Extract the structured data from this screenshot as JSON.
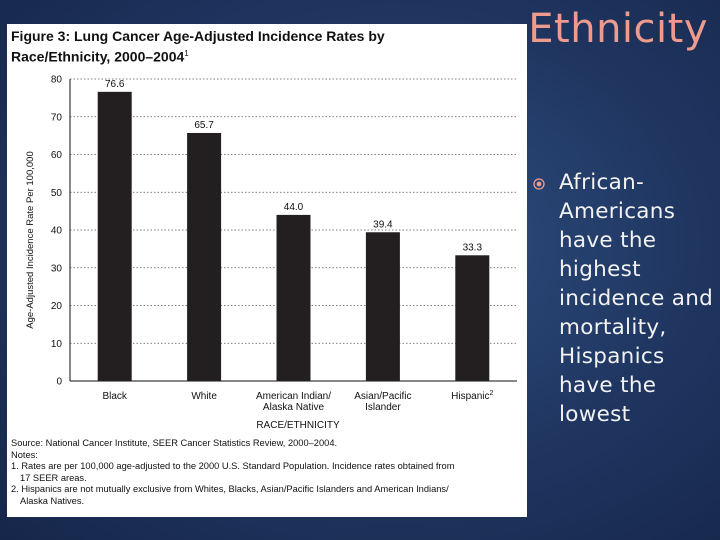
{
  "slide": {
    "title": "Ethnicity",
    "bullet": "African-Americans have the highest incidence and mortality, Hispanics have the lowest"
  },
  "figure": {
    "title_line1": "Figure 3: Lung Cancer Age-Adjusted Incidence Rates by",
    "title_line2": "Race/Ethnicity, 2000–2004",
    "title_superscript": "1",
    "source": "Source: National Cancer Institute, SEER Cancer Statistics Review, 2000–2004.",
    "notes_heading": "Notes:",
    "note1_line1": "1. Rates are per 100,000 age-adjusted to the 2000 U.S. Standard Population. Incidence rates obtained from",
    "note1_line2": "17 SEER areas.",
    "note2_line1": "2. Hispanics are not mutually exclusive from Whites, Blacks, Asian/Pacific Islanders and American Indians/",
    "note2_line2": "Alaska Natives."
  },
  "chart_data": {
    "type": "bar",
    "categories": [
      [
        "Black"
      ],
      [
        "White"
      ],
      [
        "American Indian/",
        "Alaska Native"
      ],
      [
        "Asian/Pacific",
        "Islander"
      ],
      [
        "Hispanic"
      ]
    ],
    "category_superscripts": [
      "",
      "",
      "",
      "",
      "2"
    ],
    "values": [
      76.6,
      65.7,
      44.0,
      39.4,
      33.3
    ],
    "value_labels": [
      "76.6",
      "65.7",
      "44.0",
      "39.4",
      "33.3"
    ],
    "xlabel": "RACE/ETHNICITY",
    "ylabel": "Age-Adjusted Incidence Rate Per 100,000",
    "ylim": [
      0,
      80
    ],
    "yticks": [
      0,
      10,
      20,
      30,
      40,
      50,
      60,
      70,
      80
    ],
    "grid": true,
    "bar_color": "#231f20"
  }
}
